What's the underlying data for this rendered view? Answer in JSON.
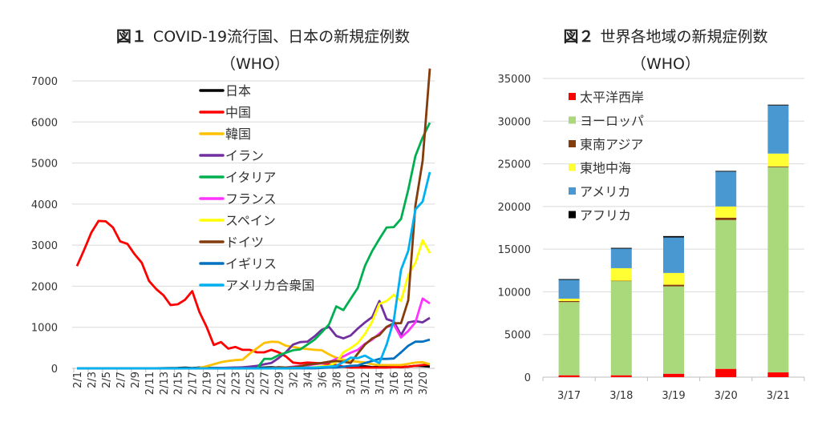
{
  "chart_data": [
    {
      "type": "line",
      "title_prefix": "図１",
      "title": "COVID-19流行国、日本の新規症例数",
      "subtitle": "（WHO）",
      "ylim": [
        0,
        7000
      ],
      "yticks": [
        0,
        1000,
        2000,
        3000,
        4000,
        5000,
        6000,
        7000
      ],
      "grid": true,
      "legend_position": "top-center",
      "x": [
        "2/1",
        "2/2",
        "2/3",
        "2/4",
        "2/5",
        "2/6",
        "2/7",
        "2/8",
        "2/9",
        "2/10",
        "2/11",
        "2/12",
        "2/13",
        "2/14",
        "2/15",
        "2/16",
        "2/17",
        "2/18",
        "2/19",
        "2/20",
        "2/21",
        "2/22",
        "2/23",
        "2/24",
        "2/25",
        "2/26",
        "2/27",
        "2/28",
        "2/29",
        "3/1",
        "3/2",
        "3/3",
        "3/4",
        "3/5",
        "3/6",
        "3/7",
        "3/8",
        "3/9",
        "3/10",
        "3/11",
        "3/12",
        "3/13",
        "3/14",
        "3/15",
        "3/16",
        "3/17",
        "3/18",
        "3/19",
        "3/20",
        "3/21"
      ],
      "series": [
        {
          "name": "日本",
          "color": "#000000",
          "values": [
            0,
            0,
            0,
            0,
            0,
            0,
            0,
            0,
            0,
            1,
            1,
            1,
            3,
            7,
            10,
            15,
            5,
            20,
            10,
            10,
            10,
            5,
            20,
            10,
            10,
            15,
            20,
            25,
            20,
            15,
            10,
            10,
            15,
            20,
            35,
            50,
            30,
            40,
            20,
            40,
            50,
            30,
            40,
            40,
            40,
            30,
            40,
            60,
            55,
            40
          ]
        },
        {
          "name": "中国",
          "color": "#ff0000",
          "values": [
            2490,
            2890,
            3310,
            3590,
            3580,
            3430,
            3090,
            3030,
            2780,
            2570,
            2130,
            1930,
            1780,
            1540,
            1560,
            1670,
            1880,
            1370,
            1010,
            570,
            640,
            480,
            520,
            450,
            450,
            390,
            390,
            450,
            390,
            290,
            140,
            120,
            140,
            130,
            120,
            100,
            80,
            40,
            20,
            20,
            20,
            20,
            20,
            20,
            30,
            30,
            40,
            60,
            80,
            100
          ]
        },
        {
          "name": "韓国",
          "color": "#ffc000",
          "values": [
            0,
            0,
            0,
            0,
            0,
            0,
            0,
            0,
            0,
            0,
            0,
            0,
            0,
            0,
            0,
            0,
            0,
            10,
            50,
            100,
            150,
            180,
            200,
            210,
            360,
            490,
            620,
            650,
            640,
            550,
            520,
            490,
            470,
            450,
            440,
            340,
            260,
            210,
            180,
            160,
            140,
            100,
            80,
            80,
            80,
            80,
            110,
            140,
            150,
            100
          ]
        },
        {
          "name": "イラン",
          "color": "#7030a0",
          "values": [
            0,
            0,
            0,
            0,
            0,
            0,
            0,
            0,
            0,
            0,
            0,
            0,
            0,
            0,
            0,
            0,
            0,
            0,
            0,
            5,
            10,
            15,
            20,
            25,
            40,
            60,
            100,
            130,
            250,
            390,
            580,
            640,
            650,
            780,
            940,
            1010,
            790,
            730,
            800,
            970,
            1120,
            1250,
            1640,
            1200,
            1140,
            810,
            1120,
            1150,
            1120,
            1230
          ]
        },
        {
          "name": "イタリア",
          "color": "#00b050",
          "values": [
            0,
            0,
            0,
            0,
            0,
            0,
            0,
            0,
            0,
            0,
            0,
            0,
            0,
            0,
            0,
            0,
            0,
            0,
            0,
            0,
            0,
            0,
            0,
            0,
            0,
            0,
            230,
            230,
            320,
            380,
            440,
            460,
            580,
            700,
            880,
            1070,
            1510,
            1420,
            1690,
            1960,
            2500,
            2860,
            3150,
            3430,
            3440,
            3640,
            4350,
            5170,
            5620,
            5980
          ]
        },
        {
          "name": "フランス",
          "color": "#ff33ff",
          "values": [
            0,
            0,
            0,
            0,
            0,
            0,
            0,
            0,
            0,
            0,
            0,
            0,
            0,
            0,
            0,
            0,
            0,
            0,
            0,
            0,
            0,
            0,
            0,
            0,
            0,
            0,
            0,
            0,
            10,
            20,
            40,
            60,
            70,
            100,
            120,
            150,
            230,
            290,
            380,
            450,
            600,
            700,
            850,
            1000,
            1070,
            750,
            910,
            1120,
            1700,
            1580
          ]
        },
        {
          "name": "スペイン",
          "color": "#ffff00",
          "values": [
            0,
            0,
            0,
            0,
            0,
            0,
            0,
            0,
            0,
            0,
            0,
            0,
            0,
            0,
            0,
            0,
            0,
            0,
            0,
            0,
            0,
            0,
            0,
            0,
            0,
            0,
            0,
            0,
            0,
            0,
            0,
            10,
            20,
            30,
            50,
            60,
            150,
            390,
            490,
            620,
            840,
            1140,
            1570,
            1640,
            1790,
            1640,
            2270,
            2570,
            3120,
            2810
          ]
        },
        {
          "name": "ドイツ",
          "color": "#843c0c",
          "values": [
            0,
            0,
            0,
            0,
            0,
            0,
            0,
            0,
            0,
            0,
            0,
            0,
            0,
            0,
            0,
            0,
            0,
            0,
            0,
            0,
            0,
            0,
            0,
            0,
            0,
            0,
            0,
            10,
            30,
            20,
            30,
            50,
            90,
            110,
            130,
            160,
            180,
            160,
            130,
            360,
            580,
            730,
            810,
            1010,
            1100,
            1100,
            1660,
            3960,
            5050,
            7300
          ]
        },
        {
          "name": "イギリス",
          "color": "#0070c0",
          "values": [
            0,
            0,
            0,
            0,
            0,
            0,
            0,
            0,
            0,
            0,
            0,
            0,
            0,
            0,
            0,
            0,
            0,
            0,
            0,
            0,
            0,
            0,
            0,
            0,
            0,
            0,
            0,
            0,
            0,
            0,
            0,
            0,
            0,
            0,
            10,
            20,
            20,
            40,
            60,
            70,
            130,
            180,
            230,
            230,
            240,
            390,
            550,
            650,
            650,
            700
          ]
        },
        {
          "name": "アメリカ合衆国",
          "color": "#00b0f0",
          "values": [
            0,
            0,
            0,
            0,
            0,
            0,
            0,
            0,
            0,
            0,
            0,
            0,
            0,
            0,
            0,
            0,
            0,
            0,
            0,
            0,
            0,
            0,
            0,
            0,
            0,
            0,
            0,
            0,
            0,
            0,
            10,
            10,
            20,
            20,
            30,
            40,
            60,
            150,
            260,
            250,
            310,
            210,
            130,
            580,
            1170,
            2400,
            2860,
            3870,
            4060,
            4780
          ]
        }
      ]
    },
    {
      "type": "bar",
      "stacked": true,
      "title_prefix": "図２",
      "title": "世界各地域の新規症例数",
      "subtitle": "（WHO）",
      "ylim": [
        0,
        35000
      ],
      "yticks": [
        0,
        5000,
        10000,
        15000,
        20000,
        25000,
        30000,
        35000
      ],
      "grid": true,
      "legend_position": "top-left",
      "categories": [
        "3/17",
        "3/18",
        "3/19",
        "3/20",
        "3/21"
      ],
      "series": [
        {
          "name": "太平洋西岸",
          "color": "#ff0000",
          "values": [
            220,
            220,
            400,
            970,
            560
          ]
        },
        {
          "name": "ヨーロッパ",
          "color": "#a9d97a",
          "values": [
            8580,
            11050,
            10240,
            17440,
            24050
          ]
        },
        {
          "name": "東南アジア",
          "color": "#843c0c",
          "values": [
            120,
            30,
            190,
            280,
            90
          ]
        },
        {
          "name": "東地中海",
          "color": "#ffff33",
          "values": [
            280,
            1470,
            1380,
            1310,
            1500
          ]
        },
        {
          "name": "アメリカ",
          "color": "#4a98d2",
          "values": [
            2200,
            2290,
            4160,
            4080,
            5640
          ]
        },
        {
          "name": "アフリカ",
          "color": "#000000",
          "values": [
            90,
            90,
            160,
            90,
            90
          ]
        }
      ]
    }
  ]
}
